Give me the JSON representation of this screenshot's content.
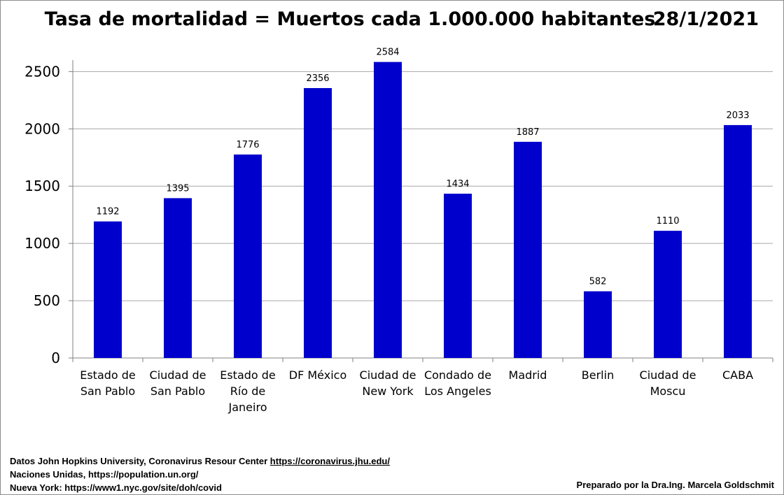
{
  "title": "Tasa de mortalidad = Muertos cada 1.000.000 habitantes",
  "date": "28/1/2021",
  "footer": {
    "line1_prefix": "Datos  John Hopkins University, Coronavirus Resour Center ",
    "line1_link": "https://coronavirus.jhu.edu/",
    "line2": "Naciones Unidas, https://population.un.org/",
    "line3": "Nueva York: https://www1.nyc.gov/site/doh/covid",
    "credit": "Preparado por la Dra.Ing. Marcela Goldschmit"
  },
  "colors": {
    "bar": "#0000cc",
    "grid": "#a6a6a6"
  },
  "chart_data": {
    "type": "bar",
    "title": "Tasa de mortalidad = Muertos cada 1.000.000 habitantes",
    "categories": [
      [
        "Estado de",
        "San Pablo"
      ],
      [
        "Ciudad de",
        "San Pablo"
      ],
      [
        "Estado de",
        "Río de",
        "Janeiro"
      ],
      [
        "DF México"
      ],
      [
        "Ciudad de",
        "New York"
      ],
      [
        "Condado de",
        "Los Angeles"
      ],
      [
        "Madrid"
      ],
      [
        "Berlin"
      ],
      [
        "Ciudad de",
        "Moscu"
      ],
      [
        "CABA"
      ]
    ],
    "values": [
      1192,
      1395,
      1776,
      2356,
      2584,
      1434,
      1887,
      582,
      1110,
      2033
    ],
    "yticks": [
      0,
      500,
      1000,
      1500,
      2000,
      2500
    ],
    "ylim": [
      0,
      2600
    ],
    "grid": true,
    "legend": false,
    "data_labels": true
  }
}
